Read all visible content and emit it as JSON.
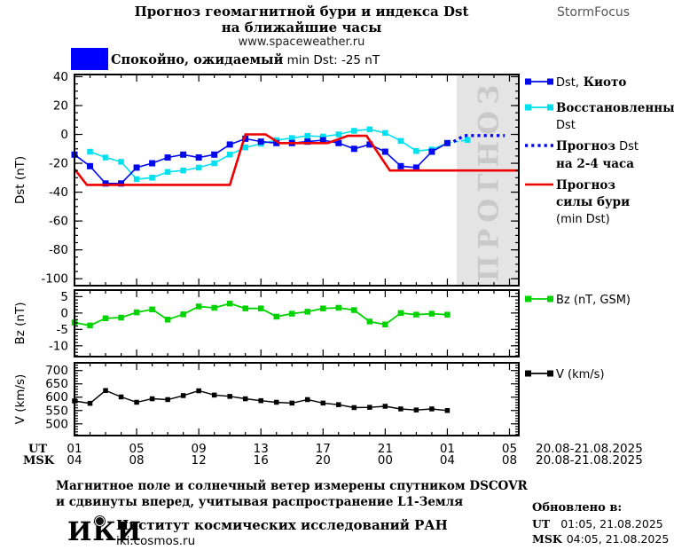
{
  "header": {
    "title_line1": "Прогноз геомагнитной бури и индекса Dst",
    "title_line2": "на ближайшие часы",
    "site": "www.spaceweather.ru",
    "brand": "StormFocus"
  },
  "status": {
    "bold_part": "Спокойно, ожидаемый",
    "plain_part": " min Dst: -25 nT",
    "swatch_color": "#0000ff"
  },
  "colors": {
    "blue": "#0008ee",
    "cyan": "#00e0ee",
    "red": "#ee0000",
    "green": "#00d300",
    "black": "#000000",
    "band": "#e4e4e4",
    "band_text": "#c9c9c9"
  },
  "xaxis": {
    "xlim": [
      0,
      28.6
    ],
    "major_every": 4,
    "ut": {
      "label": "UT",
      "ticks": [
        "01",
        "05",
        "09",
        "13",
        "17",
        "21",
        "01",
        "05"
      ],
      "date": "20.08-21.08.2025"
    },
    "msk": {
      "label": "MSK",
      "ticks": [
        "04",
        "08",
        "12",
        "16",
        "20",
        "00",
        "04",
        "08"
      ],
      "date": "20.08-21.08.2025"
    }
  },
  "chart_data": [
    {
      "name": "dst",
      "type": "line",
      "ylabel": "Dst (nT)",
      "ylim": [
        -104.8,
        41.5
      ],
      "yticks": [
        40,
        20,
        0,
        -20,
        -40,
        -60,
        -80,
        -100
      ],
      "ytick_minor": 5,
      "band": {
        "x0": 24.6,
        "x1": 28.6,
        "label": "ПРОГНОЗ"
      },
      "series": [
        {
          "id": "restored",
          "name": "Восстановленный Dst",
          "color": "cyan",
          "style": "solid",
          "markers": true,
          "ms": 6.5,
          "w": 1.6,
          "x": [
            1,
            2,
            3,
            4,
            5,
            6,
            7,
            8,
            9,
            10,
            11,
            12,
            13,
            14,
            15,
            16,
            17,
            18,
            19,
            20,
            21,
            22,
            23,
            24
          ],
          "y": [
            -12,
            -16,
            -19,
            -31,
            -30,
            -26,
            -25,
            -23,
            -20,
            -14,
            -9,
            -6.5,
            -4,
            -2.5,
            -1,
            -1.5,
            0,
            2.5,
            3.5,
            1,
            -4.5,
            -11.5,
            -10.5,
            -6
          ]
        },
        {
          "id": "restored-forecast",
          "name": "Восстановленный Dst (прогноз)",
          "color": "cyan",
          "style": "dashed",
          "markers": true,
          "ms": 6.5,
          "w": 1.6,
          "x": [
            24,
            25.3
          ],
          "y": [
            -6,
            -3.8
          ]
        },
        {
          "id": "kyoto",
          "name": "Dst, Киото",
          "color": "blue",
          "style": "solid",
          "markers": true,
          "ms": 7,
          "w": 1.6,
          "x": [
            0,
            1,
            2,
            3,
            4,
            5,
            6,
            7,
            8,
            9,
            10,
            11,
            12,
            13,
            14,
            15,
            16,
            17,
            18,
            19,
            20,
            21,
            22,
            23,
            24
          ],
          "y": [
            -14,
            -22,
            -34,
            -34,
            -23,
            -20,
            -16,
            -14,
            -16,
            -14,
            -7,
            -3,
            -5,
            -6,
            -6,
            -5,
            -4,
            -6,
            -10,
            -7,
            -12,
            -22,
            -23,
            -12,
            -6
          ]
        },
        {
          "id": "dst-forecast",
          "name": "Прогноз Dst на 2-4 часа",
          "color": "blue",
          "style": "dotted",
          "markers": false,
          "w": 3.4,
          "x": [
            24.4,
            25.1,
            27.7
          ],
          "y": [
            -5,
            -0.8,
            -0.8
          ]
        },
        {
          "id": "storm-forecast",
          "name": "Прогноз силы бури (min Dst)",
          "color": "red",
          "style": "solid",
          "markers": false,
          "w": 2.6,
          "x": [
            0,
            0.8,
            10,
            11,
            12.3,
            13.2,
            16.3,
            17.6,
            18.8,
            20.3,
            28.6
          ],
          "y": [
            -24,
            -35,
            -35,
            0,
            0,
            -6,
            -6,
            -1,
            -1,
            -25,
            -25
          ]
        }
      ]
    },
    {
      "name": "bz",
      "type": "line",
      "ylabel": "Bz (nT)",
      "ylim": [
        -13.3,
        7.0
      ],
      "yticks": [
        5,
        0,
        -5,
        -10
      ],
      "ytick_minor": 1,
      "series": [
        {
          "id": "bz",
          "name": "Bz (nT, GSM)",
          "color": "green",
          "style": "solid",
          "markers": true,
          "ms": 6.5,
          "w": 1.8,
          "x": [
            0,
            1,
            2,
            3,
            4,
            5,
            6,
            7,
            8,
            9,
            10,
            11,
            12,
            13,
            14,
            15,
            16,
            17,
            18,
            19,
            20,
            21,
            22,
            23,
            24
          ],
          "y": [
            -2.9,
            -3.8,
            -1.6,
            -1.4,
            0.2,
            1.1,
            -2,
            -0.4,
            2,
            1.6,
            2.9,
            1.4,
            1.4,
            -1.1,
            -0.2,
            0.4,
            1.4,
            1.6,
            0.9,
            -2.6,
            -3.5,
            0,
            -0.5,
            -0.2,
            -0.5
          ]
        }
      ]
    },
    {
      "name": "v",
      "type": "line",
      "ylabel": "V (km/s)",
      "ylim": [
        456,
        729
      ],
      "yticks": [
        700,
        650,
        600,
        550,
        500
      ],
      "ytick_minor": 10,
      "series": [
        {
          "id": "v",
          "name": "V (km/s)",
          "color": "black",
          "style": "solid",
          "markers": true,
          "ms": 5.5,
          "w": 1.4,
          "x": [
            0,
            1,
            2,
            3,
            4,
            5,
            6,
            7,
            8,
            9,
            10,
            11,
            12,
            13,
            14,
            15,
            16,
            17,
            18,
            19,
            20,
            21,
            22,
            23,
            24
          ],
          "y": [
            586,
            577,
            625,
            601,
            581,
            594,
            591,
            606,
            624,
            608,
            603,
            594,
            587,
            581,
            578,
            591,
            578,
            572,
            561,
            562,
            566,
            556,
            552,
            556,
            550
          ]
        }
      ]
    }
  ],
  "legend": {
    "items": [
      {
        "id": "kyoto",
        "swatch": "blue-markers",
        "lines": [
          [
            {
              "t": "Dst,",
              "f": "r"
            },
            {
              "t": " Киото",
              "f": "b"
            }
          ]
        ]
      },
      {
        "id": "restored",
        "swatch": "cyan-markers",
        "lines": [
          [
            {
              "t": "Восстановленный",
              "f": "b"
            }
          ],
          [
            {
              "t": "Dst",
              "f": "r"
            }
          ]
        ]
      },
      {
        "id": "dst-forecast",
        "swatch": "blue-dotted",
        "lines": [
          [
            {
              "t": "Прогноз",
              "f": "b"
            },
            {
              "t": " Dst",
              "f": "r"
            }
          ],
          [
            {
              "t": "на 2-4 часа",
              "f": "b"
            }
          ]
        ]
      },
      {
        "id": "storm-forecast",
        "swatch": "red-line",
        "lines": [
          [
            {
              "t": "Прогноз",
              "f": "b"
            }
          ],
          [
            {
              "t": "силы бури",
              "f": "b"
            }
          ],
          [
            {
              "t": "(min Dst)",
              "f": "r"
            }
          ]
        ]
      },
      {
        "id": "bz",
        "swatch": "green-markers",
        "lines": [
          [
            {
              "t": "Bz (nT, GSM)",
              "f": "r"
            }
          ]
        ]
      },
      {
        "id": "v",
        "swatch": "black-markers",
        "lines": [
          [
            {
              "t": "V (km/s)",
              "f": "r"
            }
          ]
        ]
      }
    ]
  },
  "footer": {
    "note1": "Магнитное поле и солнечный ветер измерены спутником DSCOVR",
    "note2": "и сдвинуты вперед, учитывая распространение L1-Земля",
    "logo": "ИКИ",
    "institute": "Институт космических исследований РАН",
    "site": "iki.cosmos.ru",
    "updated_title": "Обновлено в:",
    "updated": [
      {
        "k": "UT",
        "v": "01:05, 21.08.2025"
      },
      {
        "k": "MSK",
        "v": "04:05, 21.08.2025"
      }
    ]
  }
}
